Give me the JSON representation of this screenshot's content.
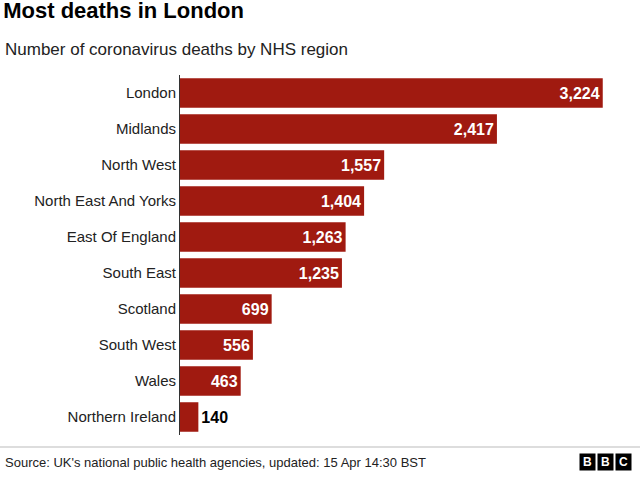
{
  "chart_data": {
    "type": "bar",
    "orientation": "horizontal",
    "title": "Most deaths in London",
    "subtitle": "Number of coronavirus deaths by NHS region",
    "source": "Source: UK's national public health agencies, updated: 15 Apr 14:30 BST",
    "logo": "BBC",
    "categories": [
      "London",
      "Midlands",
      "North West",
      "North East And Yorks",
      "East Of England",
      "South East",
      "Scotland",
      "South West",
      "Wales",
      "Northern Ireland"
    ],
    "values": [
      3224,
      2417,
      1557,
      1404,
      1263,
      1235,
      699,
      556,
      463,
      140
    ],
    "value_labels": [
      "3,224",
      "2,417",
      "1,557",
      "1,404",
      "1,263",
      "1,235",
      "699",
      "556",
      "463",
      "140"
    ],
    "color": "#a01a10",
    "data_labels": true,
    "tick_labels": "y",
    "grid": false
  }
}
